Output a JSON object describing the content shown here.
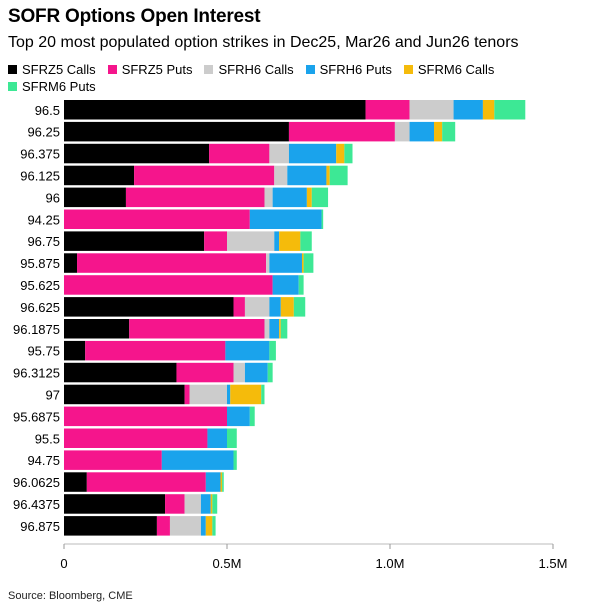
{
  "title": "SOFR Options Open Interest",
  "subtitle": "Top 20 most populated option strikes in Dec25, Mar26 and Jun26 tenors",
  "source": "Source: Bloomberg, CME",
  "chart_data": {
    "type": "bar",
    "orientation": "horizontal",
    "stacked": true,
    "categories": [
      "96.5",
      "96.25",
      "96.375",
      "96.125",
      "96",
      "94.25",
      "96.75",
      "95.875",
      "95.625",
      "96.625",
      "96.1875",
      "95.75",
      "96.3125",
      "97",
      "95.6875",
      "95.5",
      "94.75",
      "96.0625",
      "96.4375",
      "96.875"
    ],
    "series": [
      {
        "name": "SFRZ5 Calls",
        "color": "#000000",
        "values": [
          925000,
          690000,
          445000,
          215000,
          190000,
          0,
          430000,
          40000,
          0,
          520000,
          200000,
          65000,
          345000,
          370000,
          0,
          0,
          0,
          70000,
          310000,
          285000
        ]
      },
      {
        "name": "SFRZ5 Puts",
        "color": "#f5158c",
        "values": [
          135000,
          325000,
          185000,
          430000,
          425000,
          570000,
          70000,
          580000,
          640000,
          35000,
          415000,
          430000,
          175000,
          15000,
          500000,
          440000,
          300000,
          365000,
          60000,
          40000
        ]
      },
      {
        "name": "SFRH6 Calls",
        "color": "#cccccc",
        "values": [
          135000,
          45000,
          60000,
          40000,
          25000,
          0,
          145000,
          10000,
          0,
          75000,
          15000,
          0,
          35000,
          115000,
          0,
          0,
          0,
          0,
          50000,
          95000
        ]
      },
      {
        "name": "SFRH6 Puts",
        "color": "#1aa3ec",
        "values": [
          90000,
          75000,
          145000,
          120000,
          105000,
          220000,
          15000,
          100000,
          80000,
          35000,
          30000,
          135000,
          70000,
          10000,
          70000,
          60000,
          220000,
          45000,
          30000,
          15000
        ]
      },
      {
        "name": "SFRM6 Calls",
        "color": "#f5bb0b",
        "values": [
          35000,
          25000,
          25000,
          10000,
          15000,
          0,
          65000,
          5000,
          0,
          40000,
          5000,
          0,
          0,
          95000,
          0,
          0,
          0,
          5000,
          5000,
          20000
        ]
      },
      {
        "name": "SFRM6 Puts",
        "color": "#3de895",
        "values": [
          95000,
          40000,
          25000,
          55000,
          50000,
          5000,
          35000,
          30000,
          15000,
          35000,
          20000,
          20000,
          15000,
          10000,
          15000,
          30000,
          10000,
          5000,
          15000,
          10000
        ]
      }
    ],
    "xlim": [
      0,
      1500000
    ],
    "xticks": [
      {
        "value": 0,
        "label": "0"
      },
      {
        "value": 500000,
        "label": "0.5M"
      },
      {
        "value": 1000000,
        "label": "1.0M"
      },
      {
        "value": 1500000,
        "label": "1.5M"
      }
    ],
    "grid": false,
    "legend_position": "top-left"
  }
}
